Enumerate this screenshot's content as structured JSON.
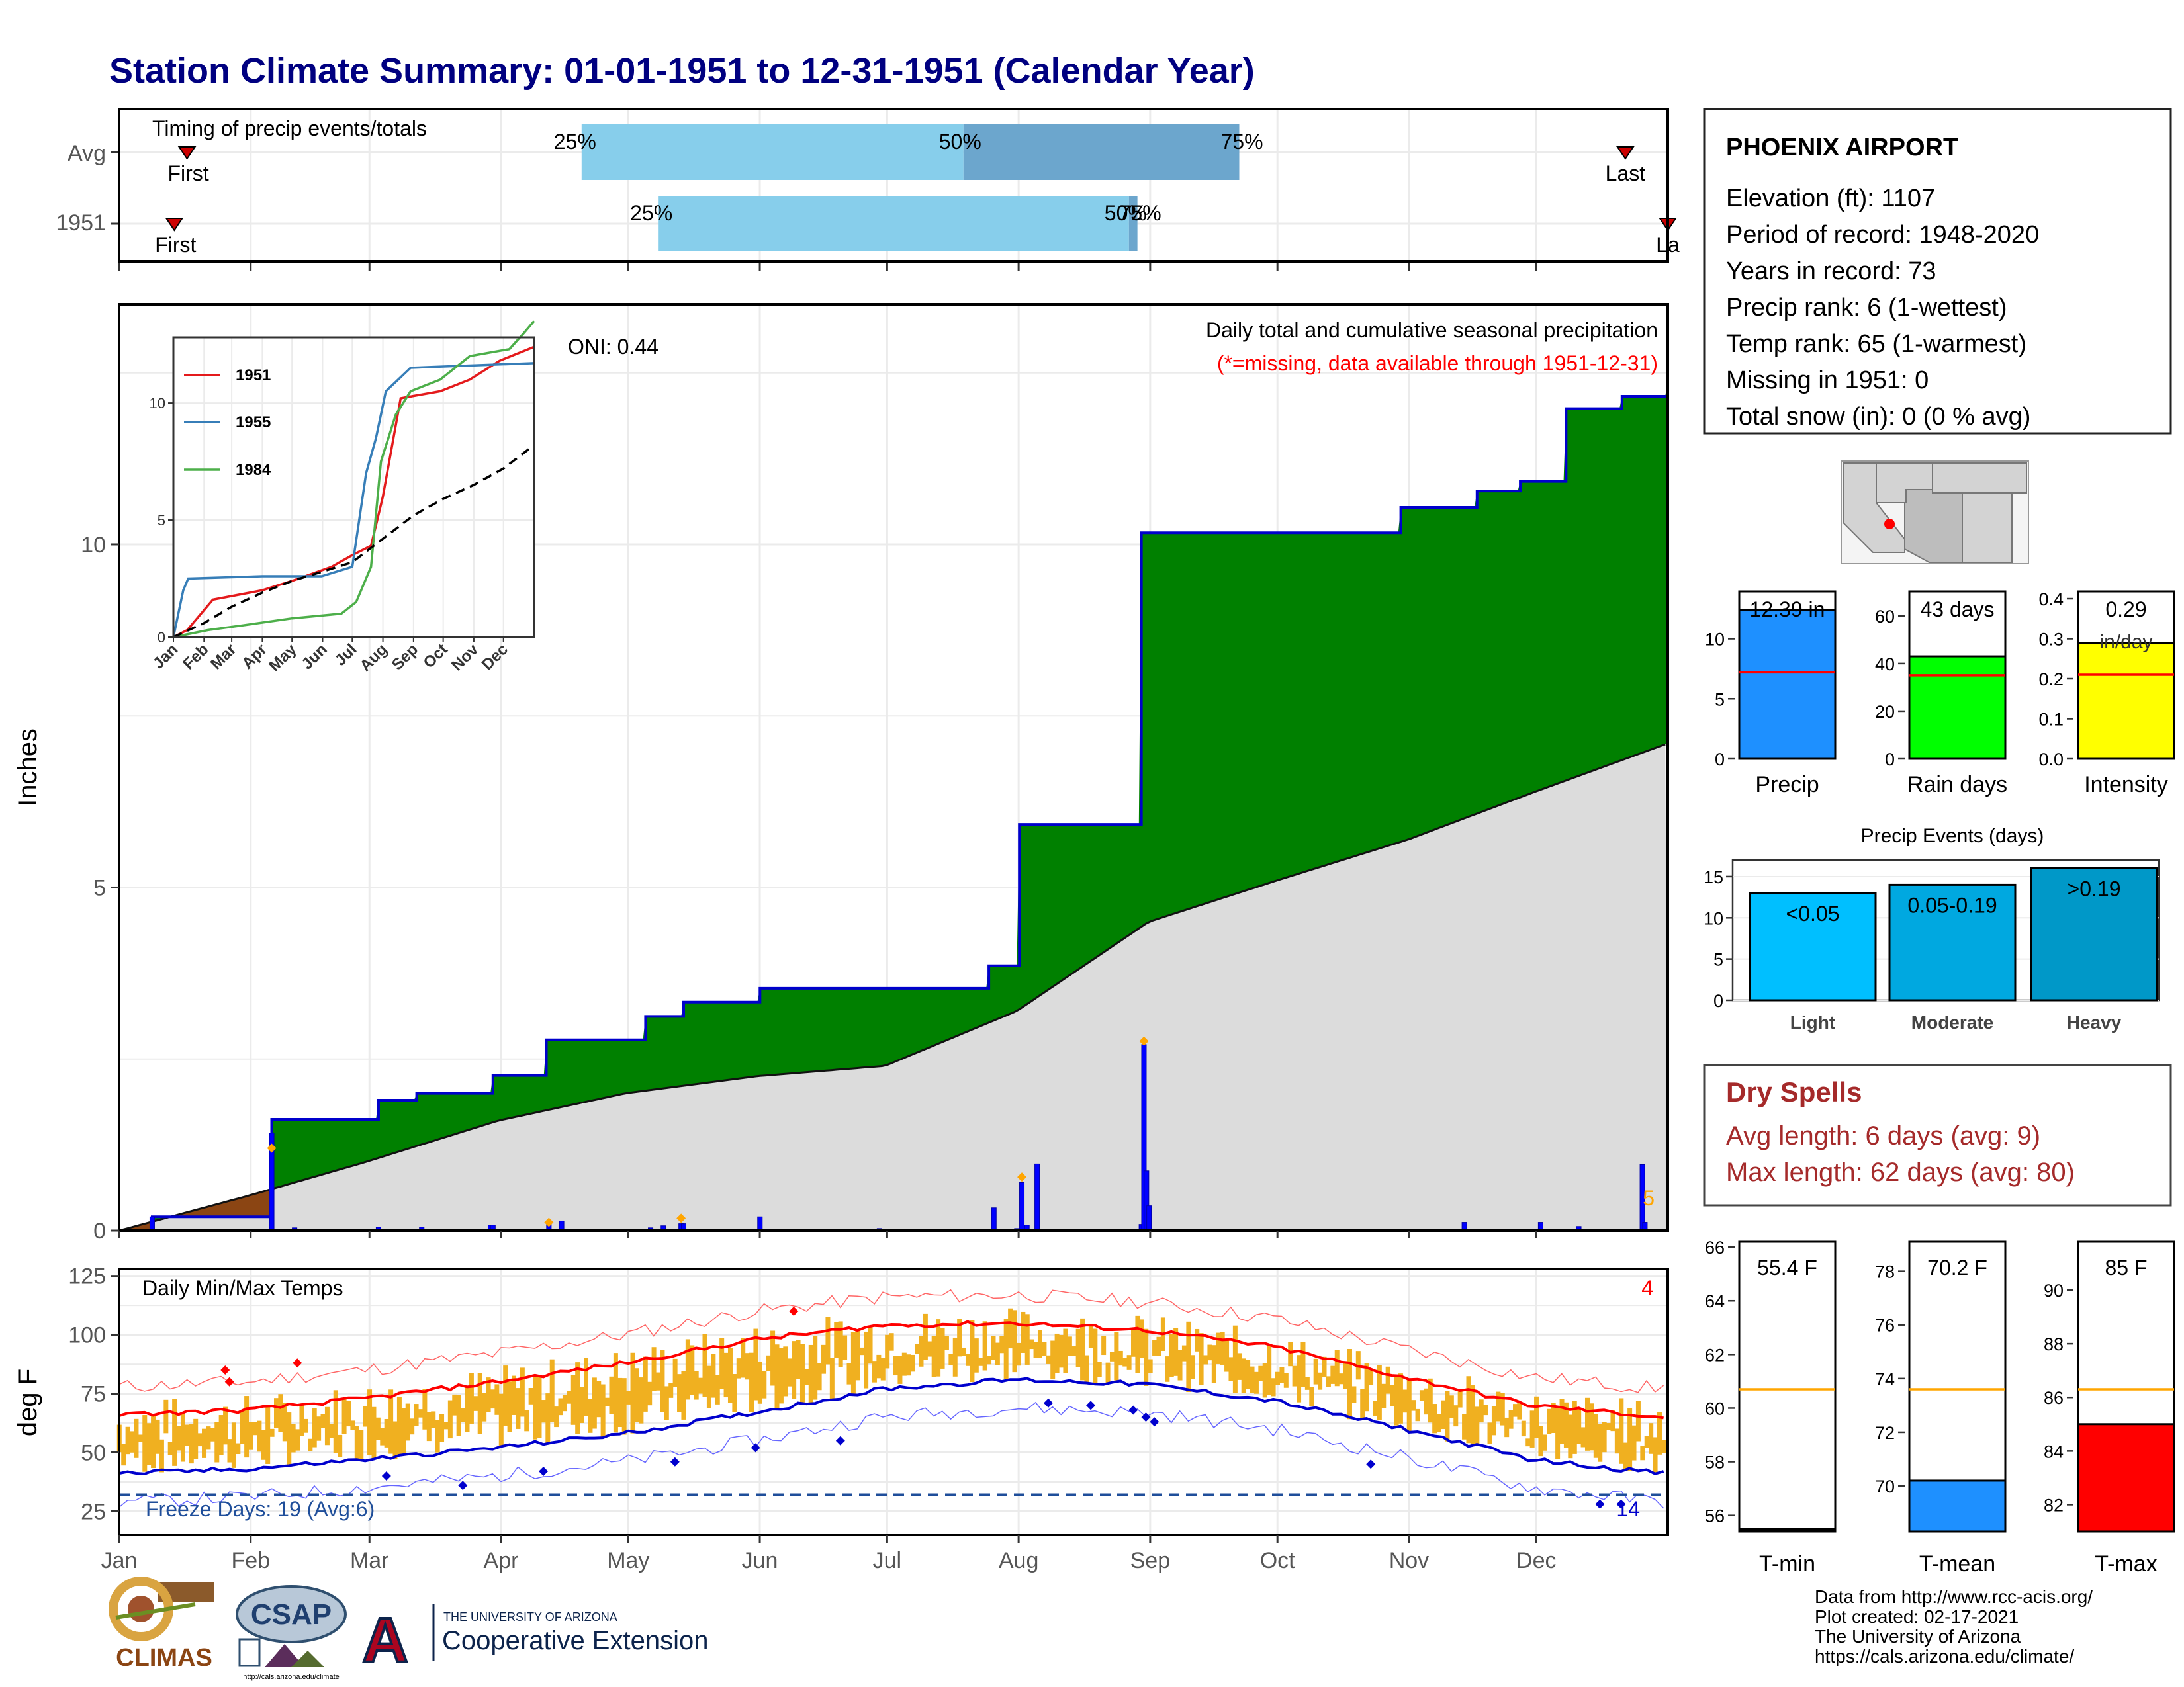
{
  "title": "Station Climate Summary: 01-01-1951 to 12-31-1951 (Calendar Year)",
  "colors": {
    "title": "#000080",
    "cumulative_green": "#008000",
    "cumulative_brown": "#8B4513",
    "climatology_gray": "#DCDCDC",
    "daily_bar_blue": "#0000FF",
    "temp_range_orange": "#F0B020",
    "tmax_avg_red": "#FF0000",
    "tmin_avg_blue": "#0000CD",
    "precip_bar": "#1E90FF",
    "raindays_bar": "#00FF00",
    "intensity_bar": "#FFFF00",
    "dry_spells_text": "#A52A2A"
  },
  "timing": {
    "label": "Timing of precip events/totals",
    "rows": [
      {
        "label": "Avg",
        "first_doy": 17,
        "first_label": "First",
        "q25_doy": 110,
        "q50_doy": 200,
        "q75_doy": 265,
        "last_doy": 356,
        "last_label": "Last",
        "pct_labels": [
          "25%",
          "50%",
          "75%"
        ]
      },
      {
        "label": "1951",
        "first_doy": 14,
        "first_label": "First",
        "q25_doy": 128,
        "q50_doy": 239,
        "q75_doy": 241,
        "last_doy": 366,
        "last_label": "La",
        "pct_labels": [
          "25%",
          "50%",
          "75%"
        ]
      }
    ]
  },
  "precip_panel": {
    "ylabel": "Inches",
    "title_right": "Daily total and cumulative seasonal precipitation",
    "missing_note": "(*=missing, data available through 1951-12-31)",
    "oni": "ONI: 0.44",
    "count_label": "5",
    "yticks": [
      "0",
      "5",
      "10"
    ]
  },
  "inset": {
    "yticks": [
      "0",
      "5",
      "10"
    ],
    "months": [
      "Jan",
      "Feb",
      "Mar",
      "Apr",
      "May",
      "Jun",
      "Jul",
      "Aug",
      "Sep",
      "Oct",
      "Nov",
      "Dec"
    ],
    "legend": [
      "1951",
      "1955",
      "1984"
    ]
  },
  "temp_panel": {
    "ylabel": "deg F",
    "title": "Daily Min/Max Temps",
    "freeze_label": "Freeze Days: 19 (Avg:6)",
    "max_count_label": "4",
    "min_count_label": "14",
    "yticks": [
      "25",
      "50",
      "75",
      "100",
      "125"
    ]
  },
  "months": [
    "Jan",
    "Feb",
    "Mar",
    "Apr",
    "May",
    "Jun",
    "Jul",
    "Aug",
    "Sep",
    "Oct",
    "Nov",
    "Dec"
  ],
  "station": {
    "name": "PHOENIX AIRPORT",
    "lines": [
      "Elevation (ft): 1107",
      "Period of record: 1948-2020",
      "Years in record: 73",
      "Precip rank: 6 (1-wettest)",
      "Temp rank: 65 (1-warmest)",
      "Missing in 1951: 0",
      "Total snow (in): 0 (0 % avg)"
    ]
  },
  "summary_bars": [
    {
      "label": "Precip",
      "value_label": "12.39 in",
      "value": 12.39,
      "avg": 7.2,
      "ymax": 13.5,
      "yticks": [
        "0",
        "5",
        "10"
      ]
    },
    {
      "label": "Rain days",
      "value_label": "43 days",
      "value": 43,
      "avg": 35,
      "ymax": 68,
      "yticks": [
        "0",
        "20",
        "40",
        "60"
      ]
    },
    {
      "label": "Intensity",
      "value_label": "0.29",
      "value_sub": "in/day",
      "value": 0.29,
      "avg": 0.21,
      "ymax": 0.405,
      "yticks": [
        "0.0",
        "0.1",
        "0.2",
        "0.3",
        "0.4"
      ]
    }
  ],
  "precip_events": {
    "title": "Precip Events (days)",
    "yticks": [
      "0",
      "5",
      "10",
      "15"
    ],
    "categories": [
      "Light",
      "Moderate",
      "Heavy"
    ],
    "labels": [
      "<0.05",
      "0.05-0.19",
      ">0.19"
    ],
    "values": [
      13,
      14,
      16
    ]
  },
  "dry_spells": {
    "title": "Dry Spells",
    "avg_line": "Avg length: 6 days (avg: 9)",
    "max_line": "Max length: 62 days (avg: 80)"
  },
  "temp_bars": [
    {
      "label": "T-min",
      "value_label": "55.4 F",
      "value": 55.4,
      "avg": 60.7,
      "ymin": 55.4,
      "ymax": 66.2,
      "yticks": [
        "56",
        "58",
        "60",
        "62",
        "64",
        "66"
      ]
    },
    {
      "label": "T-mean",
      "value_label": "70.2 F",
      "value": 70.2,
      "avg": 73.6,
      "ymin": 68.3,
      "ymax": 79.1,
      "yticks": [
        "70",
        "72",
        "74",
        "76",
        "78"
      ]
    },
    {
      "label": "T-max",
      "value_label": "85 F",
      "value": 85.0,
      "avg": 86.3,
      "ymin": 81.0,
      "ymax": 91.8,
      "yticks": [
        "82",
        "84",
        "86",
        "88",
        "90"
      ]
    }
  ],
  "footer": {
    "lines": [
      "Data from http://www.rcc-acis.org/",
      "Plot created: 02-17-2021",
      "The University of Arizona",
      "https://cals.arizona.edu/climate/"
    ]
  },
  "logos": {
    "climas": "CLIMAS",
    "csap": "CSAP",
    "csap_url": "http://cals.arizona.edu/climate",
    "uofa_small": "THE UNIVERSITY OF ARIZONA",
    "uofa_big": "Cooperative Extension",
    "uofa_letter": "A"
  },
  "chart_data": [
    {
      "type": "area",
      "name": "cumulative_precip",
      "xlabel": "",
      "ylabel": "Inches",
      "ylim": [
        0,
        13.5
      ],
      "cumulative_1951_steps": [
        [
          1,
          0
        ],
        [
          14,
          0.2
        ],
        [
          60,
          0.2
        ],
        [
          61,
          1.62
        ],
        [
          102,
          1.62
        ],
        [
          103,
          1.9
        ],
        [
          117,
          1.9
        ],
        [
          118,
          2.0
        ],
        [
          147,
          2.0
        ],
        [
          148,
          2.26
        ],
        [
          168,
          2.26
        ],
        [
          169,
          2.78
        ],
        [
          207,
          2.78
        ],
        [
          208,
          3.12
        ],
        [
          222,
          3.12
        ],
        [
          223,
          3.33
        ],
        [
          252,
          3.33
        ],
        [
          253,
          3.53
        ],
        [
          342,
          3.53
        ],
        [
          343,
          3.86
        ],
        [
          354,
          3.86
        ],
        [
          355,
          5.92
        ],
        [
          402,
          5.92
        ],
        [
          403,
          10.17
        ],
        [
          504,
          10.17
        ],
        [
          505,
          10.54
        ],
        [
          534,
          10.54
        ],
        [
          535,
          10.78
        ],
        [
          551,
          10.78
        ],
        [
          552,
          10.92
        ],
        [
          569,
          10.92
        ],
        [
          570,
          11.98
        ],
        [
          591,
          11.98
        ],
        [
          592,
          12.16
        ],
        [
          609,
          12.16
        ],
        [
          610,
          12.39
        ]
      ],
      "climatology_cumulative": [
        [
          1,
          0
        ],
        [
          31,
          0.5
        ],
        [
          59,
          1.0
        ],
        [
          90,
          1.6
        ],
        [
          120,
          2.0
        ],
        [
          151,
          2.25
        ],
        [
          181,
          2.4
        ],
        [
          212,
          3.2
        ],
        [
          243,
          4.5
        ],
        [
          273,
          5.1
        ],
        [
          304,
          5.7
        ],
        [
          334,
          6.4
        ],
        [
          365,
          7.1
        ]
      ],
      "daily_precip": [
        [
          14,
          0.2
        ],
        [
          61,
          1.42
        ],
        [
          70,
          0.04
        ],
        [
          103,
          0.05
        ],
        [
          120,
          0.05
        ],
        [
          147,
          0.08
        ],
        [
          148,
          0.08
        ],
        [
          170,
          0.1
        ],
        [
          175,
          0.14
        ],
        [
          210,
          0.04
        ],
        [
          215,
          0.07
        ],
        [
          222,
          0.1
        ],
        [
          223,
          0.1
        ],
        [
          253,
          0.2
        ],
        [
          270,
          0.02
        ],
        [
          300,
          0.03
        ],
        [
          345,
          0.33
        ],
        [
          354,
          0.03
        ],
        [
          356,
          0.7
        ],
        [
          358,
          0.08
        ],
        [
          362,
          0.97
        ],
        [
          403,
          0.09
        ],
        [
          404,
          2.71
        ],
        [
          405,
          0.87
        ],
        [
          406,
          0.36
        ],
        [
          450,
          0.02
        ],
        [
          530,
          0.12
        ],
        [
          560,
          0.12
        ],
        [
          575,
          0.06
        ],
        [
          600,
          0.96
        ],
        [
          601,
          0.12
        ]
      ]
    },
    {
      "type": "line",
      "name": "daily_temps",
      "ylabel": "deg F",
      "ylim": [
        15,
        128
      ],
      "tmax_avg": [
        [
          1,
          66
        ],
        [
          31,
          68
        ],
        [
          59,
          73
        ],
        [
          90,
          80
        ],
        [
          120,
          88
        ],
        [
          151,
          98
        ],
        [
          181,
          104
        ],
        [
          212,
          105
        ],
        [
          243,
          102
        ],
        [
          273,
          95
        ],
        [
          304,
          82
        ],
        [
          334,
          70
        ],
        [
          365,
          65
        ]
      ],
      "tmin_avg": [
        [
          1,
          41
        ],
        [
          31,
          43
        ],
        [
          59,
          47
        ],
        [
          90,
          52
        ],
        [
          120,
          58
        ],
        [
          151,
          67
        ],
        [
          181,
          77
        ],
        [
          212,
          81
        ],
        [
          243,
          79
        ],
        [
          273,
          72
        ],
        [
          304,
          60
        ],
        [
          334,
          47
        ],
        [
          365,
          41
        ]
      ],
      "freeze_line": 32,
      "record_max_points": [
        [
          26,
          85
        ],
        [
          27,
          80
        ],
        [
          43,
          88
        ],
        [
          160,
          110
        ]
      ],
      "record_min_points": [
        [
          64,
          40
        ],
        [
          82,
          36
        ],
        [
          101,
          42
        ],
        [
          132,
          46
        ],
        [
          151,
          52
        ],
        [
          171,
          55
        ],
        [
          220,
          71
        ],
        [
          230,
          70
        ],
        [
          240,
          68
        ],
        [
          243,
          65
        ],
        [
          245,
          63
        ],
        [
          296,
          45
        ],
        [
          350,
          28
        ],
        [
          355,
          28
        ]
      ]
    },
    {
      "type": "line",
      "name": "inset_cumulative",
      "xlabel": "",
      "ylim": [
        0,
        12.8
      ],
      "series": [
        {
          "name": "1951",
          "values": [
            [
              0,
              0
            ],
            [
              14,
              0.3
            ],
            [
              40,
              1.6
            ],
            [
              90,
              2.0
            ],
            [
              120,
              2.4
            ],
            [
              160,
              3.0
            ],
            [
              181,
              3.5
            ],
            [
              200,
              3.9
            ],
            [
              212,
              6.0
            ],
            [
              230,
              10.2
            ],
            [
              270,
              10.5
            ],
            [
              300,
              11.0
            ],
            [
              330,
              11.8
            ],
            [
              365,
              12.4
            ]
          ]
        },
        {
          "name": "1955",
          "values": [
            [
              0,
              0
            ],
            [
              10,
              2.0
            ],
            [
              15,
              2.5
            ],
            [
              90,
              2.6
            ],
            [
              150,
              2.6
            ],
            [
              181,
              3.0
            ],
            [
              195,
              7.0
            ],
            [
              205,
              8.5
            ],
            [
              215,
              10.5
            ],
            [
              240,
              11.5
            ],
            [
              300,
              11.6
            ],
            [
              365,
              11.7
            ]
          ]
        },
        {
          "name": "1984",
          "values": [
            [
              0,
              0
            ],
            [
              35,
              0.3
            ],
            [
              70,
              0.5
            ],
            [
              120,
              0.8
            ],
            [
              170,
              1.0
            ],
            [
              185,
              1.5
            ],
            [
              200,
              3.0
            ],
            [
              210,
              7.5
            ],
            [
              225,
              9.5
            ],
            [
              240,
              10.5
            ],
            [
              270,
              11.0
            ],
            [
              300,
              12.0
            ],
            [
              340,
              12.3
            ],
            [
              355,
              13.0
            ],
            [
              365,
              13.5
            ]
          ]
        },
        {
          "name": "avg",
          "values": [
            [
              0,
              0
            ],
            [
              31,
              0.6
            ],
            [
              59,
              1.3
            ],
            [
              90,
              1.9
            ],
            [
              120,
              2.4
            ],
            [
              151,
              2.8
            ],
            [
              181,
              3.2
            ],
            [
              212,
              4.2
            ],
            [
              243,
              5.2
            ],
            [
              273,
              5.9
            ],
            [
              304,
              6.5
            ],
            [
              334,
              7.2
            ],
            [
              365,
              8.2
            ]
          ]
        }
      ]
    },
    {
      "type": "bar",
      "name": "precip_events",
      "categories": [
        "Light",
        "Moderate",
        "Heavy"
      ],
      "values": [
        13,
        14,
        16
      ],
      "title": "Precip Events (days)",
      "ylim": [
        0,
        17
      ]
    }
  ]
}
